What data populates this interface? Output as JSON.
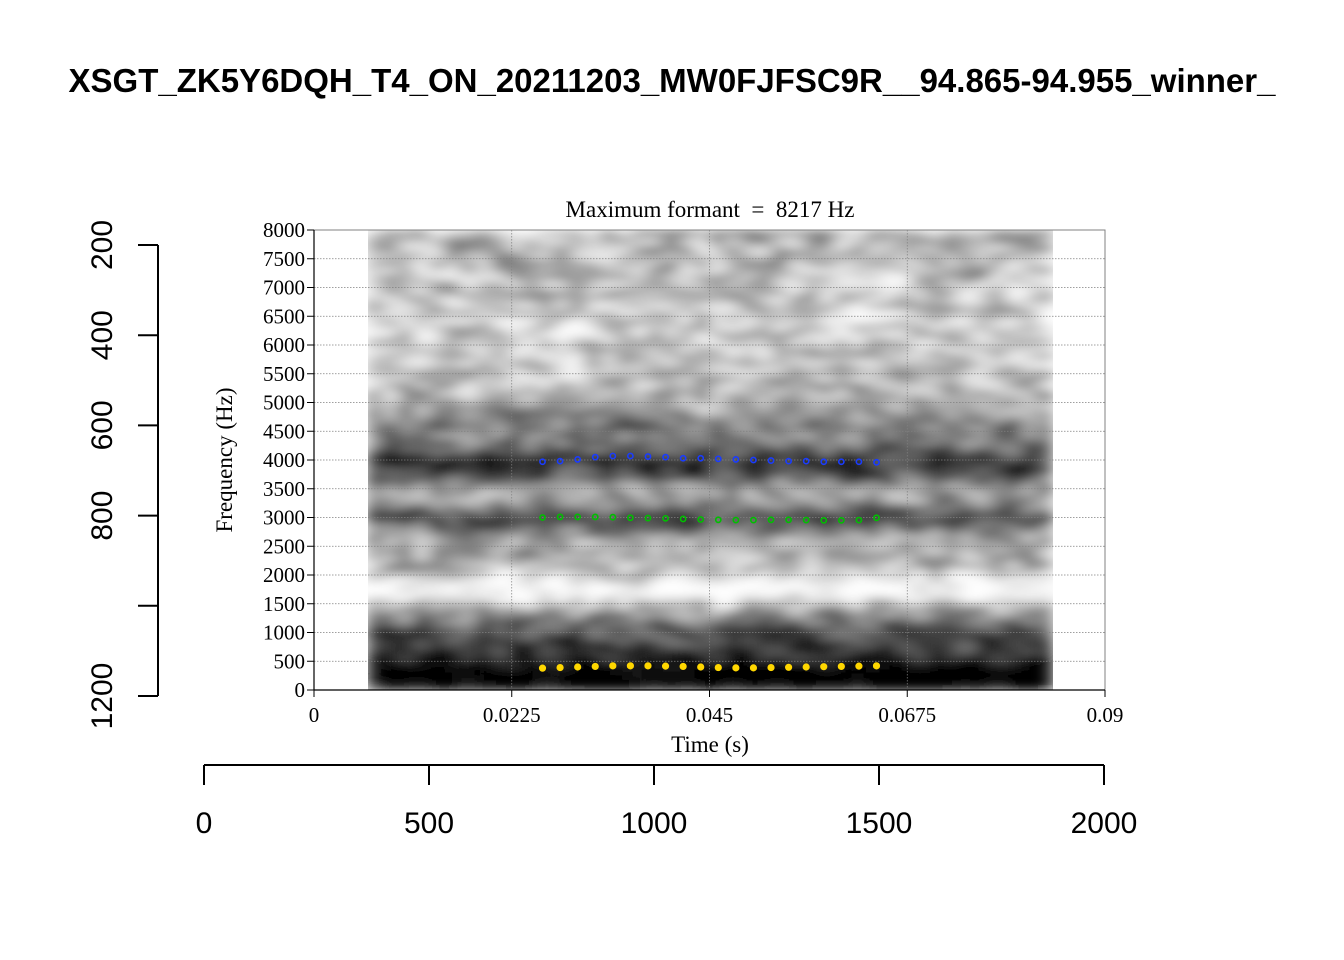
{
  "page_title": "XSGT_ZK5Y6DQH_T4_ON_20211203_MW0FJFSC9R__94.865-94.955_winner_",
  "chart_data": {
    "type": "scatter",
    "subtitle": "Maximum formant  =  8217 Hz",
    "xlabel": "Time (s)",
    "ylabel": "Frequency (Hz)",
    "xlim": [
      0,
      0.09
    ],
    "ylim": [
      0,
      8000
    ],
    "x_ticks": [
      "0",
      "0.0225",
      "0.045",
      "0.0675",
      "0.09"
    ],
    "y_ticks": [
      "0",
      "500",
      "1000",
      "1500",
      "2000",
      "2500",
      "3000",
      "3500",
      "4000",
      "4500",
      "5000",
      "5500",
      "6000",
      "6500",
      "7000",
      "7500",
      "8000"
    ],
    "grid": true,
    "spectrogram_extent_s": [
      0.006,
      0.084
    ],
    "x": [
      0.026,
      0.028,
      0.03,
      0.032,
      0.034,
      0.036,
      0.038,
      0.04,
      0.042,
      0.044,
      0.046,
      0.048,
      0.05,
      0.052,
      0.054,
      0.056,
      0.058,
      0.06,
      0.062,
      0.064
    ],
    "series": [
      {
        "color": "#ffd700",
        "values": [
          380,
          390,
          400,
          410,
          420,
          420,
          420,
          415,
          410,
          400,
          390,
          385,
          385,
          390,
          395,
          400,
          405,
          410,
          415,
          420
        ]
      },
      {
        "color": "#00c000",
        "values": [
          3000,
          3010,
          3010,
          3010,
          3005,
          2995,
          2990,
          2985,
          2975,
          2965,
          2960,
          2955,
          2955,
          2960,
          2960,
          2955,
          2950,
          2950,
          2955,
          2995
        ]
      },
      {
        "color": "#1a3cff",
        "values": [
          3970,
          3980,
          4010,
          4050,
          4070,
          4070,
          4060,
          4050,
          4030,
          4030,
          4020,
          4010,
          4000,
          3990,
          3980,
          3980,
          3970,
          3970,
          3970,
          3960
        ]
      }
    ]
  },
  "outer_axes": {
    "left_ticks": [
      "200",
      "400",
      "600",
      "800",
      "",
      "1200"
    ],
    "bottom_ticks": [
      "0",
      "500",
      "1000",
      "1500",
      "2000"
    ]
  },
  "colors": {
    "spectrogram_dark": "#000000",
    "spectrogram_light": "#ffffff",
    "grid": "#808080"
  }
}
